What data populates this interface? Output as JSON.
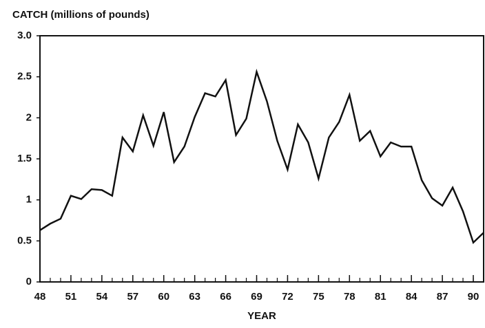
{
  "chart_data": {
    "type": "line",
    "y_label": "CATCH (millions of pounds)",
    "x_label": "YEAR",
    "x": [
      48,
      49,
      50,
      51,
      52,
      53,
      54,
      55,
      56,
      57,
      58,
      59,
      60,
      61,
      62,
      63,
      64,
      65,
      66,
      67,
      68,
      69,
      70,
      71,
      72,
      73,
      74,
      75,
      76,
      77,
      78,
      79,
      80,
      81,
      82,
      83,
      84,
      85,
      86,
      87,
      88,
      89,
      90,
      91
    ],
    "series": [
      {
        "name": "Catch",
        "color": "#111111",
        "values": [
          0.63,
          0.71,
          0.77,
          1.05,
          1.01,
          1.13,
          1.12,
          1.05,
          1.76,
          1.59,
          2.03,
          1.66,
          2.07,
          1.46,
          1.65,
          2.01,
          2.3,
          2.26,
          2.46,
          1.79,
          1.99,
          2.56,
          2.2,
          1.72,
          1.37,
          1.92,
          1.7,
          1.26,
          1.76,
          1.95,
          2.28,
          1.72,
          1.84,
          1.53,
          1.7,
          1.65,
          1.65,
          1.24,
          1.02,
          0.93,
          1.15,
          0.86,
          0.48,
          0.6
        ]
      }
    ],
    "xlim": [
      48,
      91
    ],
    "xticks": [
      48,
      51,
      54,
      57,
      60,
      63,
      66,
      69,
      72,
      75,
      78,
      81,
      84,
      87,
      90
    ],
    "ylim": [
      0,
      3
    ],
    "yticks": [
      0,
      0.5,
      1,
      1.5,
      2,
      2.5,
      {
        "value": 3,
        "label": "3.0"
      }
    ],
    "grid": false
  }
}
